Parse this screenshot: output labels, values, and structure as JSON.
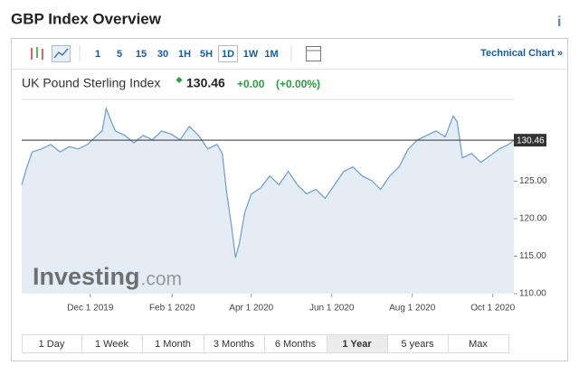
{
  "header": {
    "title": "GBP Index Overview",
    "info": "i"
  },
  "toolbar": {
    "intervals": [
      "1",
      "5",
      "15",
      "30",
      "1H",
      "5H",
      "1D",
      "1W",
      "1M"
    ],
    "selected": "1D",
    "technical_chart": "Technical Chart »"
  },
  "quote": {
    "name": "UK Pound Sterling Index",
    "price": "130.46",
    "change": "+0.00",
    "change_pct": "(+0.00%)"
  },
  "watermark": {
    "brand": "Investing",
    "suffix": ".com"
  },
  "chart_data": {
    "type": "area",
    "x": [
      "2019-10-10",
      "2019-10-14",
      "2019-10-18",
      "2019-10-25",
      "2019-11-01",
      "2019-11-08",
      "2019-11-15",
      "2019-11-22",
      "2019-11-29",
      "2019-12-06",
      "2019-12-10",
      "2019-12-13",
      "2019-12-17",
      "2019-12-20",
      "2019-12-27",
      "2020-01-03",
      "2020-01-10",
      "2020-01-17",
      "2020-01-24",
      "2020-01-31",
      "2020-02-07",
      "2020-02-14",
      "2020-02-21",
      "2020-02-28",
      "2020-03-06",
      "2020-03-10",
      "2020-03-13",
      "2020-03-17",
      "2020-03-20",
      "2020-03-23",
      "2020-03-27",
      "2020-04-01",
      "2020-04-08",
      "2020-04-15",
      "2020-04-22",
      "2020-04-29",
      "2020-05-06",
      "2020-05-13",
      "2020-05-20",
      "2020-05-27",
      "2020-06-03",
      "2020-06-10",
      "2020-06-17",
      "2020-06-24",
      "2020-07-01",
      "2020-07-08",
      "2020-07-15",
      "2020-07-22",
      "2020-07-29",
      "2020-08-05",
      "2020-08-12",
      "2020-08-19",
      "2020-08-26",
      "2020-09-01",
      "2020-09-04",
      "2020-09-08",
      "2020-09-15",
      "2020-09-22",
      "2020-09-29",
      "2020-10-06",
      "2020-10-13",
      "2020-10-17"
    ],
    "series": [
      {
        "name": "UK Pound Sterling Index",
        "color": "#6f9cc8",
        "fill": "#e4edf5",
        "values": [
          124.5,
          126.9,
          128.9,
          129.3,
          129.9,
          128.9,
          129.6,
          129.3,
          129.9,
          131.1,
          131.7,
          134.7,
          132.9,
          131.7,
          131.1,
          130.1,
          131.1,
          130.5,
          131.7,
          131.3,
          130.5,
          132.3,
          131.1,
          129.3,
          129.9,
          128.7,
          123.9,
          119.0,
          114.8,
          116.7,
          120.8,
          123.3,
          124.1,
          125.7,
          124.5,
          126.3,
          124.5,
          123.3,
          123.9,
          122.7,
          124.5,
          126.3,
          126.9,
          125.7,
          125.1,
          123.9,
          125.7,
          126.9,
          129.3,
          130.5,
          131.1,
          131.7,
          130.9,
          133.7,
          132.9,
          128.1,
          128.7,
          127.5,
          128.4,
          129.3,
          129.9,
          130.46
        ]
      }
    ],
    "xlim": [
      "2019-10-10",
      "2020-10-17"
    ],
    "xticks": [
      {
        "value": "2019-12-01",
        "label": "Dec 1 2019"
      },
      {
        "value": "2020-02-01",
        "label": "Feb 1 2020"
      },
      {
        "value": "2020-04-01",
        "label": "Apr 1 2020"
      },
      {
        "value": "2020-06-01",
        "label": "Jun 1 2020"
      },
      {
        "value": "2020-08-01",
        "label": "Aug 1 2020"
      },
      {
        "value": "2020-10-01",
        "label": "Oct 1 2020"
      }
    ],
    "ylim": [
      110,
      135.9
    ],
    "yticks": [
      {
        "value": 110,
        "label": "110.00"
      },
      {
        "value": 115,
        "label": "115.00"
      },
      {
        "value": 120,
        "label": "120.00"
      },
      {
        "value": 125,
        "label": "125.00"
      }
    ],
    "reference_line": {
      "value": 130.46,
      "label": "130.46"
    }
  },
  "ranges": {
    "buttons": [
      "1 Day",
      "1 Week",
      "1 Month",
      "3 Months",
      "6 Months",
      "1 Year",
      "5 years",
      "Max"
    ],
    "selected": "1 Year"
  }
}
